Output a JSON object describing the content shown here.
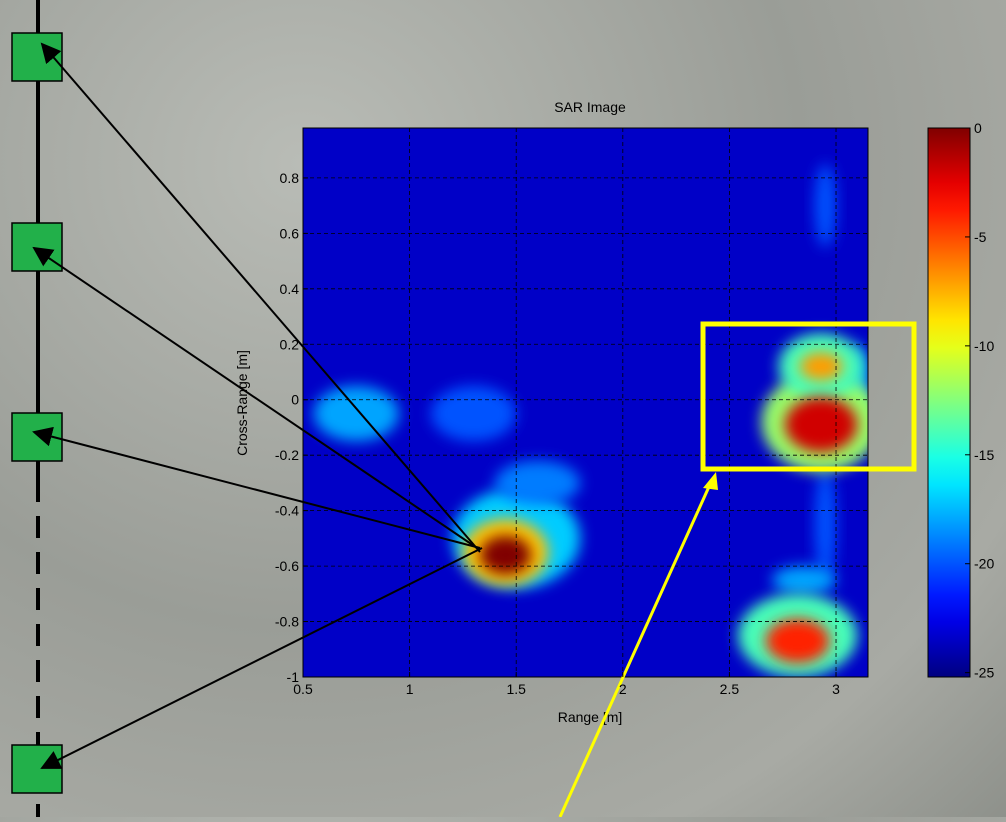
{
  "chart_data": {
    "type": "heatmap",
    "title": "SAR Image",
    "x_label": "Range [m]",
    "y_label": "Cross-Range [m]",
    "xlim": [
      0.5,
      3.15
    ],
    "xticks": [
      0.5,
      1,
      1.5,
      2,
      2.5,
      3
    ],
    "ylim": [
      -1,
      0.98
    ],
    "yticks": [
      -1,
      -0.8,
      -0.6,
      -0.4,
      -0.2,
      0,
      0.2,
      0.4,
      0.6,
      0.8
    ],
    "grid": true,
    "colormap": "jet",
    "clim": [
      -25.2,
      0
    ],
    "cticks": [
      0,
      -5,
      -10,
      -15,
      -20,
      -25
    ],
    "peaks": [
      {
        "x": 1.5,
        "y": -0.5,
        "value": -17,
        "rx": 0.3,
        "ry": 0.18
      },
      {
        "x": 0.75,
        "y": -0.05,
        "value": -18,
        "rx": 0.2,
        "ry": 0.1
      },
      {
        "x": 1.3,
        "y": -0.05,
        "value": -20,
        "rx": 0.2,
        "ry": 0.1
      },
      {
        "x": 1.6,
        "y": -0.3,
        "value": -19,
        "rx": 0.2,
        "ry": 0.08
      },
      {
        "x": 2.95,
        "y": 0.7,
        "value": -20,
        "rx": 0.05,
        "ry": 0.15
      },
      {
        "x": 2.95,
        "y": -0.45,
        "value": -20,
        "rx": 0.05,
        "ry": 0.2
      },
      {
        "x": 2.85,
        "y": -0.65,
        "value": -18,
        "rx": 0.15,
        "ry": 0.05
      },
      {
        "x": 3.1,
        "y": 0.05,
        "value": -18,
        "rx": 0.05,
        "ry": 0.15
      },
      {
        "x": 2.93,
        "y": -0.08,
        "value": -12,
        "rx": 0.28,
        "ry": 0.18
      },
      {
        "x": 2.93,
        "y": 0.12,
        "value": -14,
        "rx": 0.2,
        "ry": 0.12
      },
      {
        "x": 2.82,
        "y": -0.85,
        "value": -14,
        "rx": 0.28,
        "ry": 0.15
      },
      {
        "x": 1.45,
        "y": -0.55,
        "value": -8,
        "rx": 0.2,
        "ry": 0.12
      },
      {
        "x": 2.93,
        "y": 0.12,
        "value": -7,
        "rx": 0.1,
        "ry": 0.05
      },
      {
        "x": 2.82,
        "y": -0.87,
        "value": -4,
        "rx": 0.15,
        "ry": 0.08
      },
      {
        "x": 2.93,
        "y": -0.09,
        "value": -2,
        "rx": 0.17,
        "ry": 0.1
      },
      {
        "x": 1.45,
        "y": -0.56,
        "value": 0,
        "rx": 0.12,
        "ry": 0.07
      }
    ]
  }
}
